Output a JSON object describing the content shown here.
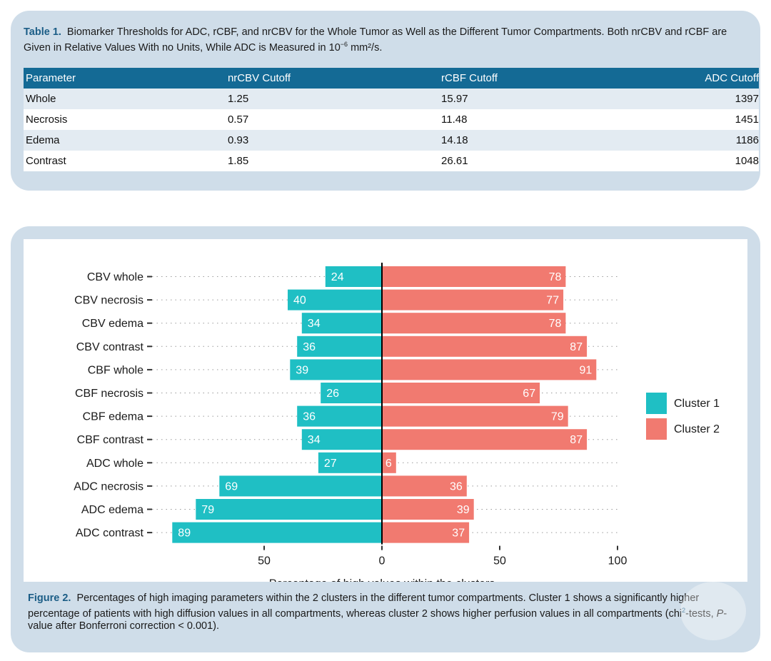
{
  "table": {
    "label": "Table 1.",
    "caption_1": "Biomarker Thresholds for ADC, rCBF, and nrCBV for the Whole Tumor as Well as the Different Tumor Compartments. Both nrCBV and rCBF are Given in Relative Values With no Units, While ADC is Measured in 10",
    "caption_sup": "−6",
    "caption_2": " mm²/s.",
    "headers": [
      "Parameter",
      "nrCBV Cutoff",
      "rCBF Cutoff",
      "ADC Cutoff"
    ],
    "rows": [
      [
        "Whole",
        "1.25",
        "15.97",
        "1397"
      ],
      [
        "Necrosis",
        "0.57",
        "11.48",
        "1451"
      ],
      [
        "Edema",
        "0.93",
        "14.18",
        "1186"
      ],
      [
        "Contrast",
        "1.85",
        "26.61",
        "1048"
      ]
    ]
  },
  "figure": {
    "label": "Figure 2.",
    "caption_1": "Percentages of high imaging parameters within the 2 clusters in the different tumor compartments. Cluster 1 shows a significantly higher percentage of patients with high diffusion values in all compartments, whereas cluster 2 shows higher perfusion values in all compartments (chi",
    "caption_sup": "2",
    "caption_2": "-tests, ",
    "caption_italic": "P",
    "caption_3": "-value after Bonferroni correction < 0.001)."
  },
  "chart_data": {
    "type": "bar",
    "orientation": "horizontal-diverging",
    "categories": [
      "CBV whole",
      "CBV necrosis",
      "CBV edema",
      "CBV contrast",
      "CBF whole",
      "CBF necrosis",
      "CBF edema",
      "CBF contrast",
      "ADC whole",
      "ADC necrosis",
      "ADC edema",
      "ADC contrast"
    ],
    "series": [
      {
        "name": "Cluster 1",
        "color": "#1fbfc4",
        "direction": "left",
        "values": [
          24,
          40,
          34,
          36,
          39,
          26,
          36,
          34,
          27,
          69,
          79,
          89
        ]
      },
      {
        "name": "Cluster 2",
        "color": "#f17a70",
        "direction": "right",
        "values": [
          78,
          77,
          78,
          87,
          91,
          67,
          79,
          87,
          6,
          36,
          39,
          37
        ]
      }
    ],
    "xlabel": "Percentage of high values within the clusters",
    "xticks": [
      "50",
      "0",
      "50",
      "100"
    ],
    "xlim": [
      -100,
      100
    ],
    "grid": "dotted horizontal",
    "legend_position": "right"
  }
}
